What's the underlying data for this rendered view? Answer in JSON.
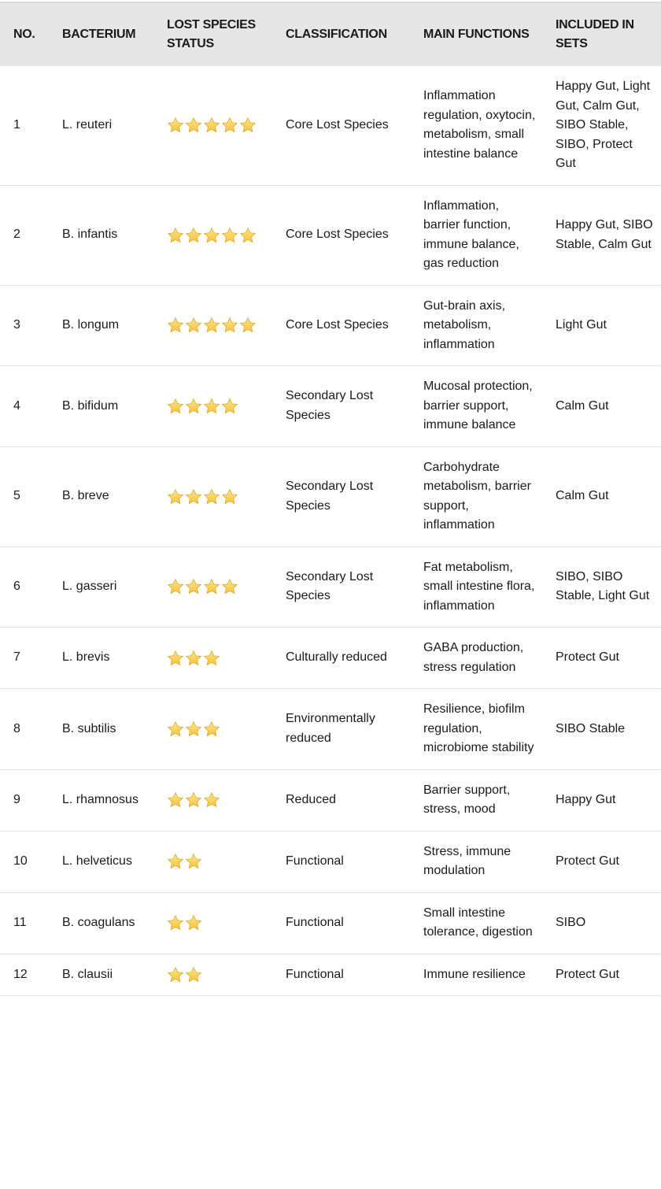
{
  "table": {
    "headers": [
      "NO.",
      "BACTERIUM",
      "LOST SPECIES STATUS",
      "CLASSIFICATION",
      "MAIN FUNCTIONS",
      "INCLUDED IN SETS"
    ],
    "star_color": "#f5c242",
    "star_icon": "star-icon",
    "rows": [
      {
        "no": "1",
        "bacterium": "L. reuteri",
        "stars": 5,
        "classification": "Core Lost Species",
        "functions": "Inflammation regulation, oxytocin, metabolism, small intestine balance",
        "sets": "Happy Gut, Light Gut, Calm Gut, SIBO Stable, SIBO, Protect Gut"
      },
      {
        "no": "2",
        "bacterium": "B. infantis",
        "stars": 5,
        "classification": "Core Lost Species",
        "functions": "Inflammation, barrier function, immune balance, gas reduction",
        "sets": "Happy Gut, SIBO Stable, Calm Gut"
      },
      {
        "no": "3",
        "bacterium": "B. longum",
        "stars": 5,
        "classification": "Core Lost Species",
        "functions": "Gut-brain axis, metabolism, inflammation",
        "sets": "Light Gut"
      },
      {
        "no": "4",
        "bacterium": "B. bifidum",
        "stars": 4,
        "classification": "Secondary Lost Species",
        "functions": "Mucosal protection, barrier support, immune balance",
        "sets": "Calm Gut"
      },
      {
        "no": "5",
        "bacterium": "B. breve",
        "stars": 4,
        "classification": "Secondary Lost Species",
        "functions": "Carbohydrate metabolism, barrier support, inflammation",
        "sets": "Calm Gut"
      },
      {
        "no": "6",
        "bacterium": "L. gasseri",
        "stars": 4,
        "classification": "Secondary Lost Species",
        "functions": "Fat metabolism, small intestine flora, inflammation",
        "sets": "SIBO, SIBO Stable, Light Gut"
      },
      {
        "no": "7",
        "bacterium": "L. brevis",
        "stars": 3,
        "classification": "Culturally reduced",
        "functions": "GABA production, stress regulation",
        "sets": "Protect Gut"
      },
      {
        "no": "8",
        "bacterium": "B. subtilis",
        "stars": 3,
        "classification": "Environmentally reduced",
        "functions": "Resilience, biofilm regulation, microbiome stability",
        "sets": "SIBO Stable"
      },
      {
        "no": "9",
        "bacterium": "L. rhamnosus",
        "stars": 3,
        "classification": "Reduced",
        "functions": "Barrier support, stress, mood",
        "sets": "Happy Gut"
      },
      {
        "no": "10",
        "bacterium": "L. helveticus",
        "stars": 2,
        "classification": "Functional",
        "functions": "Stress, immune modulation",
        "sets": "Protect Gut"
      },
      {
        "no": "11",
        "bacterium": "B. coagulans",
        "stars": 2,
        "classification": "Functional",
        "functions": "Small intestine tolerance, digestion",
        "sets": "SIBO"
      },
      {
        "no": "12",
        "bacterium": "B. clausii",
        "stars": 2,
        "classification": "Functional",
        "functions": "Immune resilience",
        "sets": "Protect Gut"
      }
    ]
  }
}
